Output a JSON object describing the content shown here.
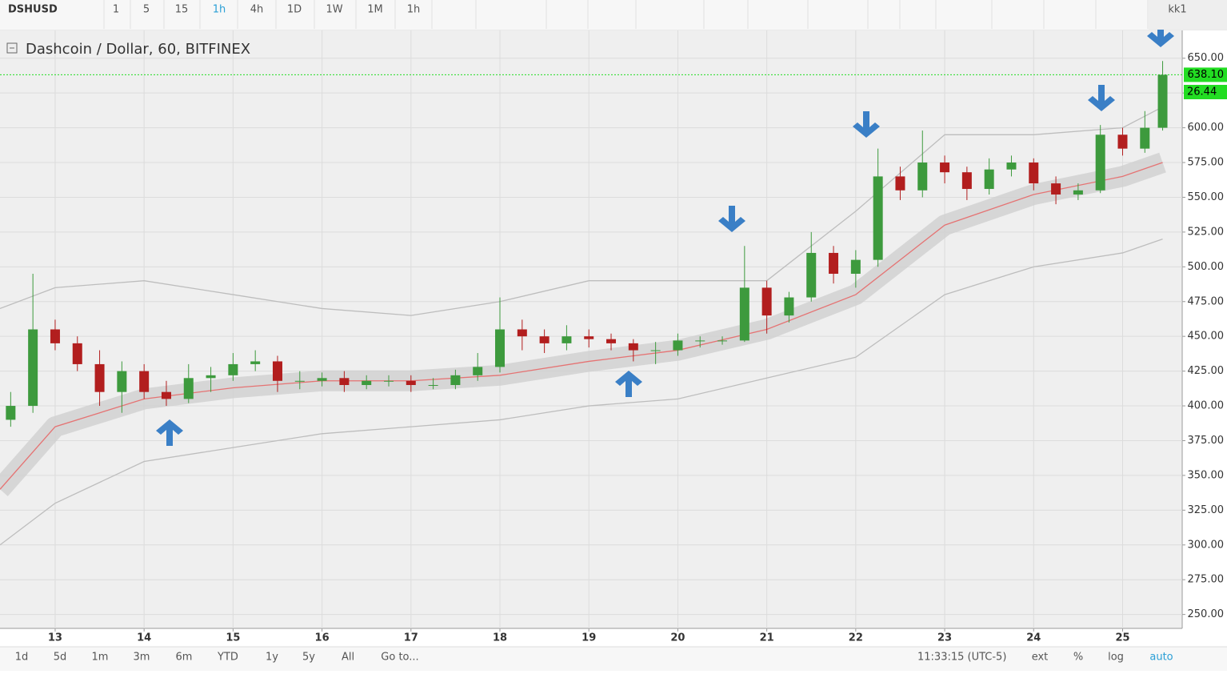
{
  "toolbar": {
    "symbol": "DSHUSD",
    "intervals": [
      "1",
      "5",
      "15",
      "1h",
      "4h",
      "1D",
      "1W",
      "1M",
      "1h"
    ],
    "user": "kk1"
  },
  "chart_data": {
    "type": "candlestick",
    "title": "Dashcoin / Dollar, 60, BITFINEX",
    "xlim": [
      12.38,
      25.67
    ],
    "xticks": [
      13,
      14,
      15,
      16,
      17,
      18,
      19,
      20,
      21,
      22,
      23,
      24,
      25
    ],
    "ylim": [
      240,
      670
    ],
    "yticks": [
      {
        "value": 250,
        "label": "250.00"
      },
      {
        "value": 275,
        "label": "275.00"
      },
      {
        "value": 300,
        "label": "300.00"
      },
      {
        "value": 325,
        "label": "325.00"
      },
      {
        "value": 350,
        "label": "350.00"
      },
      {
        "value": 375,
        "label": "375.00"
      },
      {
        "value": 400,
        "label": "400.00"
      },
      {
        "value": 425,
        "label": "425.00"
      },
      {
        "value": 450,
        "label": "450.00"
      },
      {
        "value": 475,
        "label": "475.00"
      },
      {
        "value": 500,
        "label": "500.00"
      },
      {
        "value": 525,
        "label": "525.00"
      },
      {
        "value": 550,
        "label": "550.00"
      },
      {
        "value": 575,
        "label": "575.00"
      },
      {
        "value": 600,
        "label": "600.00"
      },
      {
        "value": 625,
        "label": "625.00"
      },
      {
        "value": 650,
        "label": "650.00"
      }
    ],
    "grid": true,
    "up_color": "#3d9a3d",
    "down_color": "#b21e1e",
    "x": [
      12.5,
      12.75,
      13,
      13.25,
      13.5,
      13.75,
      14,
      14.25,
      14.5,
      14.75,
      15,
      15.25,
      15.5,
      15.75,
      16,
      16.25,
      16.5,
      16.75,
      17,
      17.25,
      17.5,
      17.75,
      18,
      18.25,
      18.5,
      18.75,
      19,
      19.25,
      19.5,
      19.75,
      20,
      20.25,
      20.5,
      20.75,
      21,
      21.25,
      21.5,
      21.75,
      22,
      22.25,
      22.5,
      22.75,
      23,
      23.25,
      23.5,
      23.75,
      24,
      24.25,
      24.5,
      24.75,
      25,
      25.25,
      25.45
    ],
    "open": [
      390,
      400,
      455,
      445,
      430,
      410,
      425,
      410,
      405,
      420,
      422,
      430,
      432,
      418,
      418,
      420,
      415,
      418,
      418,
      415,
      415,
      422,
      428,
      455,
      450,
      445,
      450,
      448,
      445,
      440,
      440,
      447,
      447,
      447,
      485,
      465,
      478,
      510,
      495,
      505,
      565,
      555,
      575,
      568,
      556,
      570,
      575,
      560,
      552,
      555,
      595,
      585,
      600
    ],
    "high": [
      410,
      495,
      462,
      450,
      440,
      432,
      430,
      418,
      430,
      428,
      438,
      440,
      436,
      425,
      424,
      425,
      422,
      422,
      422,
      420,
      426,
      438,
      478,
      462,
      455,
      458,
      455,
      452,
      448,
      446,
      452,
      450,
      450,
      515,
      490,
      482,
      525,
      515,
      512,
      585,
      572,
      598,
      580,
      572,
      578,
      580,
      578,
      565,
      560,
      602,
      600,
      612,
      648
    ],
    "low": [
      385,
      395,
      440,
      425,
      400,
      395,
      405,
      400,
      402,
      410,
      418,
      425,
      410,
      412,
      414,
      410,
      412,
      414,
      410,
      412,
      412,
      418,
      424,
      440,
      438,
      440,
      442,
      440,
      432,
      430,
      436,
      442,
      444,
      446,
      452,
      460,
      475,
      488,
      485,
      500,
      548,
      550,
      560,
      548,
      552,
      565,
      555,
      545,
      548,
      553,
      580,
      582,
      598
    ],
    "close": [
      400,
      455,
      445,
      430,
      410,
      425,
      410,
      405,
      420,
      422,
      430,
      432,
      418,
      418,
      420,
      415,
      418,
      418,
      415,
      415,
      422,
      428,
      455,
      450,
      445,
      450,
      448,
      445,
      440,
      440,
      447,
      447,
      447,
      485,
      465,
      478,
      510,
      495,
      505,
      565,
      555,
      575,
      568,
      556,
      570,
      575,
      560,
      552,
      555,
      595,
      585,
      600,
      638.1
    ],
    "lines": [
      {
        "color": "#bdbdbd",
        "x": [
          12.38,
          13,
          14,
          15,
          16,
          17,
          18,
          19,
          20,
          21,
          22,
          23,
          24,
          25,
          25.45
        ],
        "values": [
          470,
          485,
          490,
          480,
          470,
          465,
          475,
          490,
          490,
          490,
          540,
          595,
          595,
          600,
          615
        ]
      },
      {
        "color": "#bdbdbd",
        "x": [
          12.38,
          13,
          14,
          15,
          16,
          17,
          18,
          19,
          20,
          21,
          22,
          23,
          24,
          25,
          25.45
        ],
        "values": [
          300,
          330,
          360,
          370,
          380,
          385,
          390,
          400,
          405,
          420,
          435,
          480,
          500,
          510,
          520
        ]
      },
      {
        "color": "#e57373",
        "x": [
          12.38,
          13,
          14,
          15,
          16,
          17,
          18,
          19,
          20,
          21,
          22,
          23,
          24,
          25,
          25.45
        ],
        "values": [
          340,
          385,
          405,
          413,
          418,
          418,
          422,
          432,
          440,
          455,
          480,
          530,
          552,
          565,
          575
        ]
      }
    ],
    "last_price": {
      "value": 638.1,
      "label": "638.10"
    },
    "indicator_label": "26.44"
  },
  "bottom_bar": {
    "ranges": [
      "1d",
      "5d",
      "1m",
      "3m",
      "6m",
      "YTD",
      "1y",
      "5y",
      "All",
      "Go to..."
    ],
    "time": "11:33:15 (UTC-5)",
    "options": [
      "ext",
      "%",
      "log",
      "auto"
    ]
  }
}
